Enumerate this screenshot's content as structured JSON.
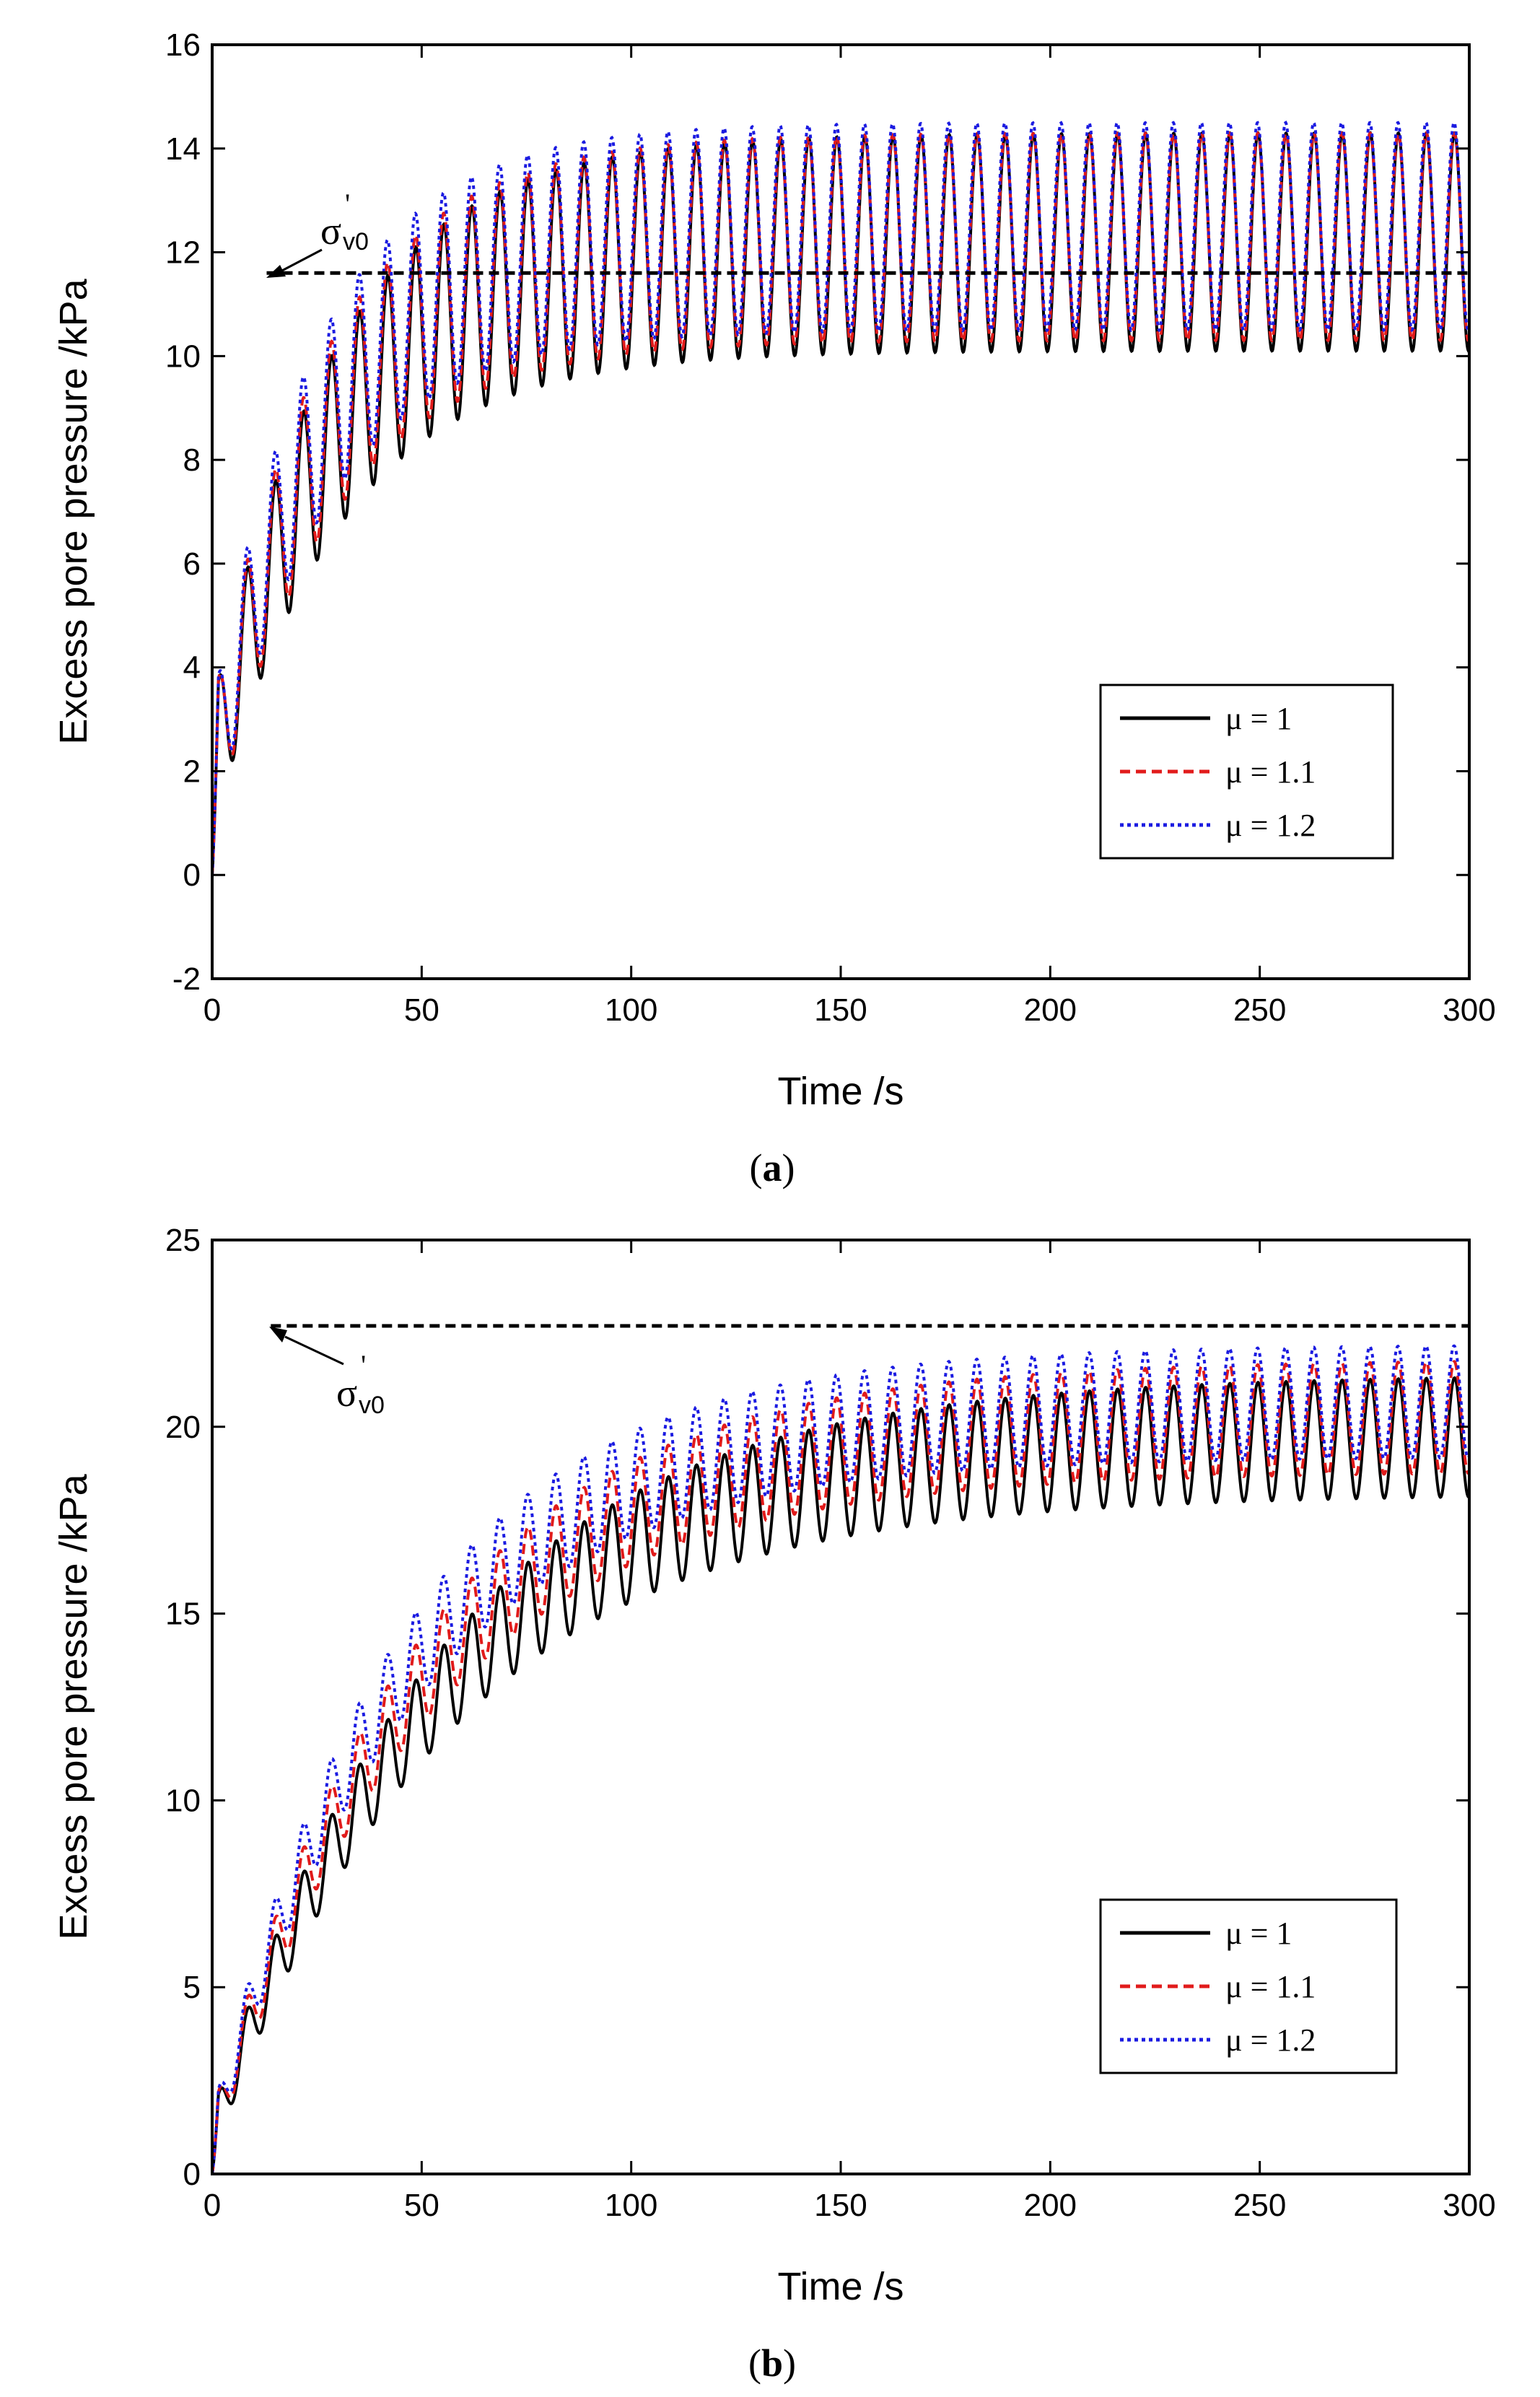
{
  "chart_data": [
    {
      "id": "a",
      "type": "line",
      "caption_letter": "a",
      "xlabel": "Time /s",
      "ylabel": "Excess pore pressure /kPa",
      "xlim": [
        0,
        300
      ],
      "ylim": [
        -2,
        16
      ],
      "xticks": [
        "0",
        "50",
        "100",
        "150",
        "200",
        "250",
        "300"
      ],
      "yticks": [
        "-2",
        "0",
        "2",
        "4",
        "6",
        "8",
        "10",
        "12",
        "14",
        "16"
      ],
      "reference_line": {
        "label": "σ",
        "prime": "'",
        "subscript": "v0",
        "value": 11.6,
        "color": "#000000",
        "label_anchor_x": 13
      },
      "series": [
        {
          "name": "μ = 1",
          "color": "#000000",
          "dash": "solid",
          "period": 6.7,
          "mean_start": 2.0,
          "mean_end": 12.2,
          "tau": 30,
          "amp_start": 1.2,
          "amp_end": 2.1
        },
        {
          "name": "μ = 1.1",
          "color": "#e11b1b",
          "dash": "dashed",
          "period": 6.7,
          "mean_start": 2.0,
          "mean_end": 12.3,
          "tau": 28,
          "amp_start": 1.2,
          "amp_end": 2.0
        },
        {
          "name": "μ = 1.2",
          "color": "#1b1be1",
          "dash": "dotted",
          "period": 6.7,
          "mean_start": 2.0,
          "mean_end": 12.5,
          "tau": 26,
          "amp_start": 1.2,
          "amp_end": 2.0
        }
      ]
    },
    {
      "id": "b",
      "type": "line",
      "caption_letter": "b",
      "xlabel": "Time /s",
      "ylabel": "Excess pore pressure /kPa",
      "xlim": [
        0,
        300
      ],
      "ylim": [
        0,
        25
      ],
      "xticks": [
        "0",
        "50",
        "100",
        "150",
        "200",
        "250",
        "300"
      ],
      "yticks": [
        "0",
        "5",
        "10",
        "15",
        "20",
        "25"
      ],
      "reference_line": {
        "label": "σ",
        "prime": "'",
        "subscript": "v0",
        "value": 22.7,
        "color": "#000000",
        "label_anchor_x": 14
      },
      "series": [
        {
          "name": "μ = 1",
          "color": "#000000",
          "dash": "solid",
          "period": 6.7,
          "mean_start": 1.0,
          "mean_end": 19.8,
          "tau": 55,
          "amp_start": 0.6,
          "amp_end": 1.6
        },
        {
          "name": "μ = 1.1",
          "color": "#e11b1b",
          "dash": "dashed",
          "period": 6.7,
          "mean_start": 1.0,
          "mean_end": 20.3,
          "tau": 50,
          "amp_start": 0.6,
          "amp_end": 1.5
        },
        {
          "name": "μ = 1.2",
          "color": "#1b1be1",
          "dash": "dotted",
          "period": 6.7,
          "mean_start": 1.0,
          "mean_end": 20.7,
          "tau": 46,
          "amp_start": 0.6,
          "amp_end": 1.5
        }
      ]
    }
  ]
}
